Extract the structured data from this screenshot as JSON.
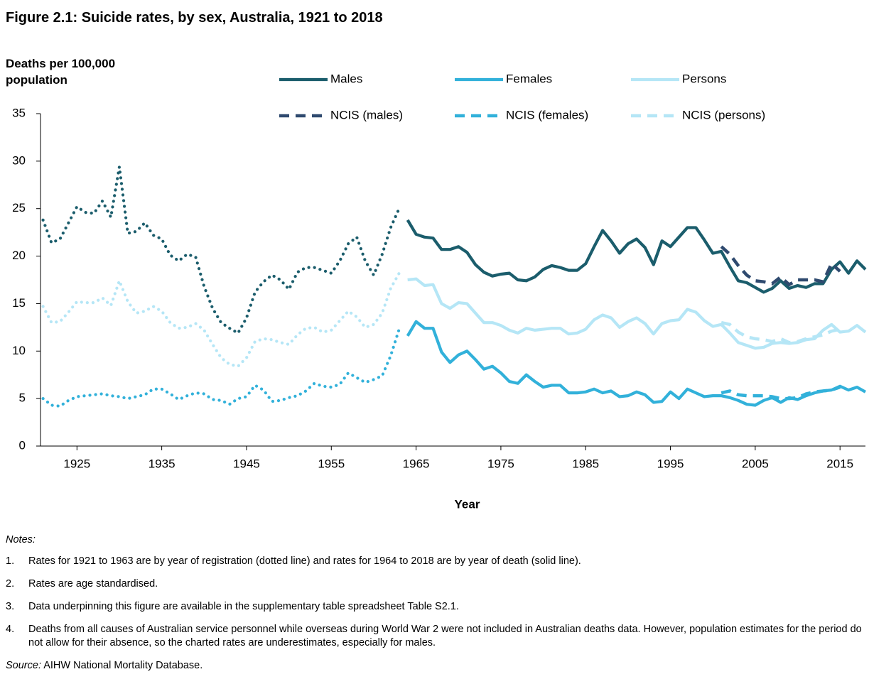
{
  "chart_data": {
    "type": "line",
    "title": "Figure 2.1: Suicide rates, by sex, Australia, 1921 to 2018",
    "y_label": "Deaths per 100,000 population",
    "x_label": "Year",
    "x": [
      1921,
      1922,
      1923,
      1924,
      1925,
      1926,
      1927,
      1928,
      1929,
      1930,
      1931,
      1932,
      1933,
      1934,
      1935,
      1936,
      1937,
      1938,
      1939,
      1940,
      1941,
      1942,
      1943,
      1944,
      1945,
      1946,
      1947,
      1948,
      1949,
      1950,
      1951,
      1952,
      1953,
      1954,
      1955,
      1956,
      1957,
      1958,
      1959,
      1960,
      1961,
      1962,
      1963,
      1964,
      1965,
      1966,
      1967,
      1968,
      1969,
      1970,
      1971,
      1972,
      1973,
      1974,
      1975,
      1976,
      1977,
      1978,
      1979,
      1980,
      1981,
      1982,
      1983,
      1984,
      1985,
      1986,
      1987,
      1988,
      1989,
      1990,
      1991,
      1992,
      1993,
      1994,
      1995,
      1996,
      1997,
      1998,
      1999,
      2000,
      2001,
      2002,
      2003,
      2004,
      2005,
      2006,
      2007,
      2008,
      2009,
      2010,
      2011,
      2012,
      2013,
      2014,
      2015,
      2016,
      2017,
      2018
    ],
    "xlim": [
      1920.7,
      2018
    ],
    "xticks": [
      1925,
      1935,
      1945,
      1955,
      1965,
      1975,
      1985,
      1995,
      2005,
      2015
    ],
    "ylim": [
      0,
      35
    ],
    "yticks": [
      0,
      5,
      10,
      15,
      20,
      25,
      30,
      35
    ],
    "grid": false,
    "series": [
      {
        "name": "Males",
        "color": "#1b5d6c",
        "style": "solid",
        "values": [
          null,
          null,
          null,
          null,
          null,
          null,
          null,
          null,
          null,
          null,
          null,
          null,
          null,
          null,
          null,
          null,
          null,
          null,
          null,
          null,
          null,
          null,
          null,
          null,
          null,
          null,
          null,
          null,
          null,
          null,
          null,
          null,
          null,
          null,
          null,
          null,
          null,
          null,
          null,
          null,
          null,
          null,
          null,
          23.8,
          22.3,
          22.0,
          21.9,
          20.7,
          20.7,
          21.0,
          20.4,
          19.1,
          18.3,
          17.9,
          18.1,
          18.2,
          17.5,
          17.4,
          17.8,
          18.6,
          19.0,
          18.8,
          18.5,
          18.5,
          19.2,
          21.0,
          22.7,
          21.6,
          20.3,
          21.3,
          21.8,
          20.9,
          19.1,
          21.6,
          21.0,
          22.0,
          23.0,
          23.0,
          21.7,
          20.3,
          20.5,
          18.9,
          17.4,
          17.2,
          16.7,
          16.2,
          16.6,
          17.4,
          16.6,
          16.9,
          16.7,
          17.1,
          17.1,
          18.6,
          19.4,
          18.2,
          19.5,
          18.6
        ]
      },
      {
        "name": "Females",
        "color": "#32b1da",
        "style": "solid",
        "values": [
          null,
          null,
          null,
          null,
          null,
          null,
          null,
          null,
          null,
          null,
          null,
          null,
          null,
          null,
          null,
          null,
          null,
          null,
          null,
          null,
          null,
          null,
          null,
          null,
          null,
          null,
          null,
          null,
          null,
          null,
          null,
          null,
          null,
          null,
          null,
          null,
          null,
          null,
          null,
          null,
          null,
          null,
          null,
          11.6,
          13.1,
          12.4,
          12.4,
          9.9,
          8.8,
          9.6,
          10.0,
          9.1,
          8.1,
          8.4,
          7.7,
          6.8,
          6.6,
          7.5,
          6.8,
          6.2,
          6.4,
          6.4,
          5.6,
          5.6,
          5.7,
          6.0,
          5.6,
          5.8,
          5.2,
          5.3,
          5.7,
          5.4,
          4.6,
          4.7,
          5.7,
          5.0,
          6.0,
          5.6,
          5.2,
          5.3,
          5.3,
          5.1,
          4.8,
          4.4,
          4.3,
          4.8,
          5.1,
          4.6,
          5.1,
          4.9,
          5.3,
          5.6,
          5.8,
          5.9,
          6.3,
          5.9,
          6.2,
          5.7
        ]
      },
      {
        "name": "Persons",
        "color": "#b5e6f6",
        "style": "solid",
        "values": [
          null,
          null,
          null,
          null,
          null,
          null,
          null,
          null,
          null,
          null,
          null,
          null,
          null,
          null,
          null,
          null,
          null,
          null,
          null,
          null,
          null,
          null,
          null,
          null,
          null,
          null,
          null,
          null,
          null,
          null,
          null,
          null,
          null,
          null,
          null,
          null,
          null,
          null,
          null,
          null,
          null,
          null,
          null,
          17.5,
          17.6,
          16.9,
          17.0,
          15.0,
          14.5,
          15.1,
          15.0,
          14.0,
          13.0,
          13.0,
          12.7,
          12.2,
          11.9,
          12.4,
          12.2,
          12.3,
          12.4,
          12.4,
          11.8,
          11.9,
          12.3,
          13.3,
          13.8,
          13.5,
          12.5,
          13.1,
          13.5,
          12.9,
          11.8,
          12.9,
          13.2,
          13.3,
          14.4,
          14.1,
          13.2,
          12.6,
          12.8,
          11.9,
          10.9,
          10.6,
          10.3,
          10.4,
          10.8,
          10.9,
          10.8,
          10.9,
          11.2,
          11.3,
          12.2,
          12.8,
          12.0,
          12.1,
          12.7,
          12.0
        ]
      },
      {
        "name": "NCIS (males)",
        "color": "#2f4a6f",
        "style": "dashed",
        "values": [
          null,
          null,
          null,
          null,
          null,
          null,
          null,
          null,
          null,
          null,
          null,
          null,
          null,
          null,
          null,
          null,
          null,
          null,
          null,
          null,
          null,
          null,
          null,
          null,
          null,
          null,
          null,
          null,
          null,
          null,
          null,
          null,
          null,
          null,
          null,
          null,
          null,
          null,
          null,
          null,
          null,
          null,
          null,
          null,
          null,
          null,
          null,
          null,
          null,
          null,
          null,
          null,
          null,
          null,
          null,
          null,
          null,
          null,
          null,
          null,
          null,
          null,
          null,
          null,
          null,
          null,
          null,
          null,
          null,
          null,
          null,
          null,
          null,
          null,
          null,
          null,
          null,
          null,
          null,
          null,
          21.0,
          20.2,
          19.0,
          18.0,
          17.4,
          17.3,
          17.1,
          17.8,
          17.0,
          17.5,
          17.5,
          17.5,
          17.3,
          19.2,
          18.4,
          null,
          null,
          null
        ]
      },
      {
        "name": "NCIS (females)",
        "color": "#32b1da",
        "style": "dashed",
        "values": [
          null,
          null,
          null,
          null,
          null,
          null,
          null,
          null,
          null,
          null,
          null,
          null,
          null,
          null,
          null,
          null,
          null,
          null,
          null,
          null,
          null,
          null,
          null,
          null,
          null,
          null,
          null,
          null,
          null,
          null,
          null,
          null,
          null,
          null,
          null,
          null,
          null,
          null,
          null,
          null,
          null,
          null,
          null,
          null,
          null,
          null,
          null,
          null,
          null,
          null,
          null,
          null,
          null,
          null,
          null,
          null,
          null,
          null,
          null,
          null,
          null,
          null,
          null,
          null,
          null,
          null,
          null,
          null,
          null,
          null,
          null,
          null,
          null,
          null,
          null,
          null,
          null,
          null,
          null,
          null,
          5.6,
          5.8,
          5.4,
          5.3,
          5.3,
          5.3,
          5.2,
          5.0,
          5.0,
          5.1,
          5.5,
          5.7,
          5.8,
          5.9,
          6.2,
          null,
          null,
          null
        ]
      },
      {
        "name": "NCIS (persons)",
        "color": "#b5e6f6",
        "style": "dashed",
        "values": [
          null,
          null,
          null,
          null,
          null,
          null,
          null,
          null,
          null,
          null,
          null,
          null,
          null,
          null,
          null,
          null,
          null,
          null,
          null,
          null,
          null,
          null,
          null,
          null,
          null,
          null,
          null,
          null,
          null,
          null,
          null,
          null,
          null,
          null,
          null,
          null,
          null,
          null,
          null,
          null,
          null,
          null,
          null,
          null,
          null,
          null,
          null,
          null,
          null,
          null,
          null,
          null,
          null,
          null,
          null,
          null,
          null,
          null,
          null,
          null,
          null,
          null,
          null,
          null,
          null,
          null,
          null,
          null,
          null,
          null,
          null,
          null,
          null,
          null,
          null,
          null,
          null,
          null,
          null,
          null,
          13.0,
          12.8,
          12.0,
          11.5,
          11.3,
          11.2,
          11.0,
          11.3,
          10.9,
          11.0,
          11.3,
          11.5,
          11.7,
          12.1,
          12.3,
          null,
          null,
          null
        ]
      },
      {
        "color": "#1b5d6c",
        "style": "dotted",
        "values": [
          23.8,
          21.4,
          21.8,
          23.5,
          25.2,
          24.6,
          24.5,
          25.8,
          24.1,
          29.4,
          22.4,
          22.6,
          23.5,
          22.2,
          21.8,
          20.1,
          19.5,
          20.2,
          19.9,
          16.8,
          14.5,
          13.0,
          12.4,
          11.9,
          13.5,
          16.2,
          17.3,
          18.0,
          17.5,
          16.5,
          18.3,
          18.8,
          18.8,
          18.5,
          18.2,
          19.5,
          21.3,
          22.0,
          19.5,
          18.0,
          20.2,
          23.0,
          25.0,
          null,
          null,
          null,
          null,
          null,
          null,
          null,
          null,
          null,
          null,
          null,
          null,
          null,
          null,
          null,
          null,
          null,
          null,
          null,
          null,
          null,
          null,
          null,
          null,
          null,
          null,
          null,
          null,
          null,
          null,
          null,
          null,
          null,
          null,
          null,
          null,
          null,
          null,
          null,
          null,
          null,
          null,
          null,
          null,
          null,
          null,
          null,
          null,
          null,
          null,
          null,
          null,
          null,
          null,
          null
        ]
      },
      {
        "color": "#32b1da",
        "style": "dotted",
        "values": [
          5.0,
          4.3,
          4.2,
          4.8,
          5.2,
          5.3,
          5.4,
          5.5,
          5.3,
          5.2,
          5.0,
          5.2,
          5.4,
          6.0,
          6.0,
          5.5,
          4.9,
          5.3,
          5.6,
          5.5,
          4.9,
          4.8,
          4.4,
          5.0,
          5.2,
          6.4,
          5.9,
          4.7,
          4.8,
          5.1,
          5.3,
          5.8,
          6.6,
          6.3,
          6.2,
          6.5,
          7.7,
          7.2,
          6.7,
          7.0,
          7.4,
          9.5,
          12.3,
          null,
          null,
          null,
          null,
          null,
          null,
          null,
          null,
          null,
          null,
          null,
          null,
          null,
          null,
          null,
          null,
          null,
          null,
          null,
          null,
          null,
          null,
          null,
          null,
          null,
          null,
          null,
          null,
          null,
          null,
          null,
          null,
          null,
          null,
          null,
          null,
          null,
          null,
          null,
          null,
          null,
          null,
          null,
          null,
          null,
          null,
          null,
          null,
          null,
          null,
          null,
          null,
          null,
          null,
          null
        ]
      },
      {
        "color": "#b5e6f6",
        "style": "dotted",
        "values": [
          14.7,
          13.0,
          13.1,
          14.1,
          15.2,
          15.1,
          15.1,
          15.6,
          14.8,
          17.4,
          15.2,
          14.0,
          14.2,
          14.7,
          14.2,
          13.0,
          12.4,
          12.5,
          12.9,
          12.2,
          10.7,
          9.3,
          8.6,
          8.4,
          9.3,
          11.0,
          11.3,
          11.2,
          10.9,
          10.7,
          11.7,
          12.4,
          12.5,
          12.0,
          12.2,
          13.2,
          14.2,
          13.6,
          12.5,
          12.8,
          14.0,
          16.6,
          18.2,
          null,
          null,
          null,
          null,
          null,
          null,
          null,
          null,
          null,
          null,
          null,
          null,
          null,
          null,
          null,
          null,
          null,
          null,
          null,
          null,
          null,
          null,
          null,
          null,
          null,
          null,
          null,
          null,
          null,
          null,
          null,
          null,
          null,
          null,
          null,
          null,
          null,
          null,
          null,
          null,
          null,
          null,
          null,
          null,
          null,
          null,
          null,
          null,
          null,
          null,
          null,
          null,
          null,
          null,
          null
        ]
      }
    ]
  },
  "notes": {
    "heading": "Notes:",
    "items": [
      {
        "number": "1.",
        "text": "Rates for 1921 to 1963 are by year of registration (dotted line) and rates for 1964 to 2018 are by year of death (solid line)."
      },
      {
        "number": "2.",
        "text": "Rates are age standardised."
      },
      {
        "number": "3.",
        "text": "Data underpinning this figure are available in the supplementary table spreadsheet Table S2.1."
      },
      {
        "number": "4.",
        "text": "Deaths from all causes of Australian service personnel while overseas during World War 2 were not included in Australian deaths data. However, population estimates for the period do not allow for their absence, so the charted rates are underestimates, especially for males."
      }
    ]
  },
  "source": {
    "label": "Source:",
    "text": "AIHW National Mortality Database."
  }
}
